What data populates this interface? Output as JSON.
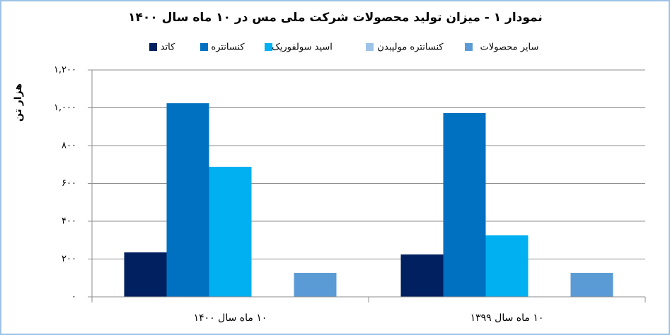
{
  "chart_data": {
    "type": "bar",
    "title": "نمودار ۱ - میزان تولید محصولات شرکت ملی مس در ۱۰ ماه سال ۱۴۰۰",
    "y_label": "هزار تن",
    "categories": [
      "۱۰ ماه سال ۱۴۰۰",
      "۱۰ ماه سال ۱۳۹۹"
    ],
    "series": [
      {
        "name": "کاتد",
        "color": "#002060",
        "values": [
          235,
          224
        ]
      },
      {
        "name": "کنسانتره",
        "color": "#0070c0",
        "values": [
          1024,
          972
        ]
      },
      {
        "name": "اسید سولفوریک",
        "color": "#00b0f0",
        "values": [
          688,
          325
        ]
      },
      {
        "name": "کنسانتره مولیبدن",
        "color": "#9dc3e6",
        "values": [
          2,
          2
        ]
      },
      {
        "name": "سایر محصولات",
        "color": "#5b9bd5",
        "values": [
          127,
          127
        ]
      }
    ],
    "ylim": [
      0,
      1200
    ],
    "yticks": [
      {
        "value": 0,
        "label": "۰"
      },
      {
        "value": 200,
        "label": "۲۰۰"
      },
      {
        "value": 400,
        "label": "۴۰۰"
      },
      {
        "value": 600,
        "label": "۶۰۰"
      },
      {
        "value": 800,
        "label": "۸۰۰"
      },
      {
        "value": 1000,
        "label": "۱,۰۰۰"
      },
      {
        "value": 1200,
        "label": "۱,۲۰۰"
      }
    ],
    "grid": true
  }
}
